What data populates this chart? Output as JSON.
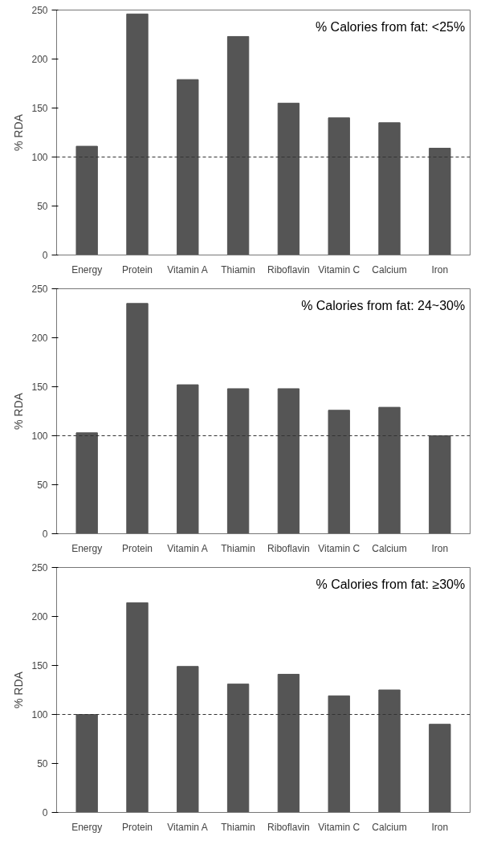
{
  "chart_data": [
    {
      "type": "bar",
      "title": "% Calories from fat: <25%",
      "ylabel": "% RDA",
      "categories": [
        "Energy",
        "Protein",
        "Vitamin A",
        "Thiamin",
        "Riboflavin",
        "Vitamin C",
        "Calcium",
        "Iron"
      ],
      "values": [
        111,
        246,
        179,
        223,
        155,
        140,
        135,
        109
      ],
      "color": "#555555",
      "ylim": [
        0,
        250
      ],
      "yticks": [
        0,
        50,
        100,
        150,
        200,
        250
      ],
      "grid": false,
      "ref_lines": [
        {
          "axis": "y",
          "value": 100,
          "line_style": "dashed"
        }
      ]
    },
    {
      "type": "bar",
      "title": "% Calories from fat: 24~30%",
      "ylabel": "% RDA",
      "categories": [
        "Energy",
        "Protein",
        "Vitamin A",
        "Thiamin",
        "Riboflavin",
        "Vitamin C",
        "Calcium",
        "Iron"
      ],
      "values": [
        103,
        235,
        152,
        148,
        148,
        126,
        129,
        100
      ],
      "color": "#555555",
      "ylim": [
        0,
        250
      ],
      "yticks": [
        0,
        50,
        100,
        150,
        200,
        250
      ],
      "grid": false,
      "ref_lines": [
        {
          "axis": "y",
          "value": 100,
          "line_style": "dashed"
        }
      ]
    },
    {
      "type": "bar",
      "title": "% Calories from fat: ≥30%",
      "ylabel": "% RDA",
      "categories": [
        "Energy",
        "Protein",
        "Vitamin A",
        "Thiamin",
        "Riboflavin",
        "Vitamin C",
        "Calcium",
        "Iron"
      ],
      "values": [
        100,
        214,
        149,
        131,
        141,
        119,
        125,
        90
      ],
      "color": "#555555",
      "ylim": [
        0,
        250
      ],
      "yticks": [
        0,
        50,
        100,
        150,
        200,
        250
      ],
      "grid": false,
      "ref_lines": [
        {
          "axis": "y",
          "value": 100,
          "line_style": "dashed"
        }
      ]
    }
  ]
}
